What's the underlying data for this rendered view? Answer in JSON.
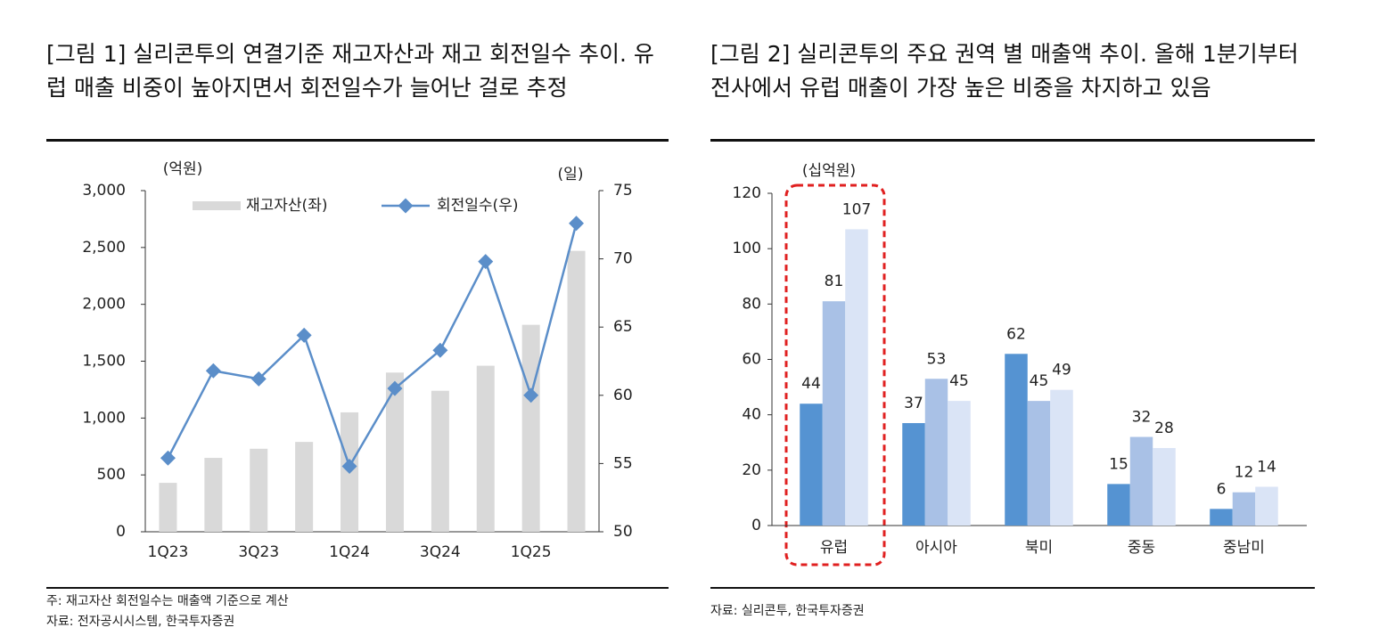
{
  "chart_data": [
    {
      "type": "combo",
      "title": "[그림 1] 실리콘투의 연결기준 재고자산과 재고 회전일수 추이. 유럽 매출 비중이 높아지면서 회전일수가 늘어난 걸로 추정",
      "categories": [
        "1Q23",
        null,
        "3Q23",
        null,
        "1Q24",
        null,
        "3Q24",
        null,
        "1Q25",
        null
      ],
      "series": [
        {
          "name": "재고자산(좌)",
          "type": "bar",
          "color": "#d9d9d9",
          "values": [
            430,
            650,
            730,
            790,
            1050,
            1400,
            1240,
            1460,
            1820,
            2470
          ]
        },
        {
          "name": "회전일수(우)",
          "type": "line",
          "axis": "y2",
          "color": "#5b8ec9",
          "values": [
            55.4,
            61.8,
            61.2,
            64.4,
            54.8,
            60.5,
            63.3,
            69.8,
            60.0,
            72.6
          ]
        }
      ],
      "ylim": [
        0,
        3000
      ],
      "yticks": [
        0,
        500,
        {
          "value": 1000,
          "label": "1,000"
        },
        {
          "value": 1500,
          "label": "1,500"
        },
        {
          "value": 2000,
          "label": "2,000"
        },
        {
          "value": 2500,
          "label": "2,500"
        },
        {
          "value": 3000,
          "label": "3,000"
        }
      ],
      "y2lim": [
        50,
        75
      ],
      "y2ticks": [
        50,
        55,
        60,
        65,
        70,
        75
      ],
      "y_unit": "(억원)",
      "y2_unit": "(일)",
      "notes": [
        "주: 재고자산 회전일수는 매출액 기준으로 계산",
        "자료: 전자공시시스템, 한국투자증권"
      ]
    },
    {
      "type": "bar",
      "title": "[그림 2] 실리콘투의 주요 권역 별 매출액 추이. 올해 1분기부터 전사에서 유럽 매출이 가장 높은 비중을 차지하고 있음",
      "categories": [
        "유럽",
        "아시아",
        "북미",
        "중동",
        "중남미"
      ],
      "series": [
        {
          "color": "#5593d2",
          "values": [
            44,
            37,
            62,
            15,
            6
          ]
        },
        {
          "color": "#a9c1e6",
          "values": [
            81,
            53,
            45,
            32,
            12
          ]
        },
        {
          "color": "#dae4f6",
          "values": [
            107,
            45,
            49,
            28,
            14
          ]
        }
      ],
      "ylim": [
        0,
        120
      ],
      "yticks": [
        0,
        20,
        40,
        60,
        80,
        100,
        120
      ],
      "y_unit": "(십억원)",
      "notes": [
        "자료: 실리콘투, 한국투자증권"
      ]
    }
  ]
}
